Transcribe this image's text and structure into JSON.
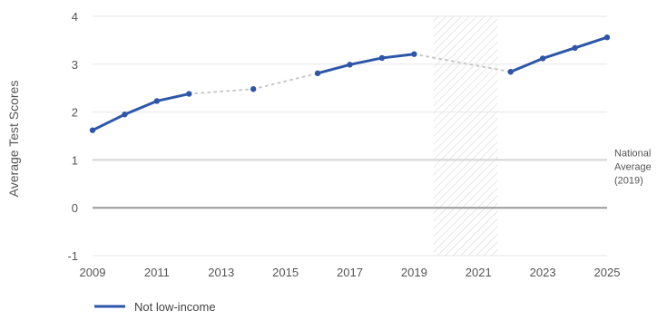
{
  "chart_data": {
    "type": "line",
    "title": "",
    "xlabel": "",
    "ylabel": "Average Test Scores",
    "xlim": [
      2009,
      2025
    ],
    "ylim": [
      -1,
      4
    ],
    "x_ticks": [
      "2009",
      "2011",
      "2013",
      "2015",
      "2017",
      "2019",
      "2021",
      "2023",
      "2025"
    ],
    "y_ticks": [
      "-1",
      "0",
      "1",
      "2",
      "3",
      "4"
    ],
    "grid": true,
    "series": [
      {
        "name": "Not low-income",
        "color": "#2e56a8",
        "points": [
          {
            "x": 2009,
            "y": 1.62
          },
          {
            "x": 2010,
            "y": 1.95
          },
          {
            "x": 2011,
            "y": 2.23
          },
          {
            "x": 2012,
            "y": 2.38
          },
          {
            "x": 2014,
            "y": 2.48
          },
          {
            "x": 2016,
            "y": 2.81
          },
          {
            "x": 2017,
            "y": 2.99
          },
          {
            "x": 2018,
            "y": 3.13
          },
          {
            "x": 2019,
            "y": 3.21
          },
          {
            "x": 2022,
            "y": 2.84
          },
          {
            "x": 2023,
            "y": 3.12
          },
          {
            "x": 2024,
            "y": 3.34
          },
          {
            "x": 2025,
            "y": 3.56
          }
        ],
        "gap_connector_color": "#c8c8c8"
      }
    ],
    "shaded_region": {
      "x_range": [
        2019.6,
        2021.6
      ],
      "pattern": "diagonal-hatch"
    },
    "reference_lines": [
      {
        "y": 1,
        "color": "#d4d4d4",
        "label_lines": [
          "National",
          "Average",
          "(2019)"
        ]
      },
      {
        "y": 0,
        "color": "#999999"
      }
    ],
    "legend": {
      "placement": "bottom-left",
      "label": "Not low-income"
    }
  }
}
